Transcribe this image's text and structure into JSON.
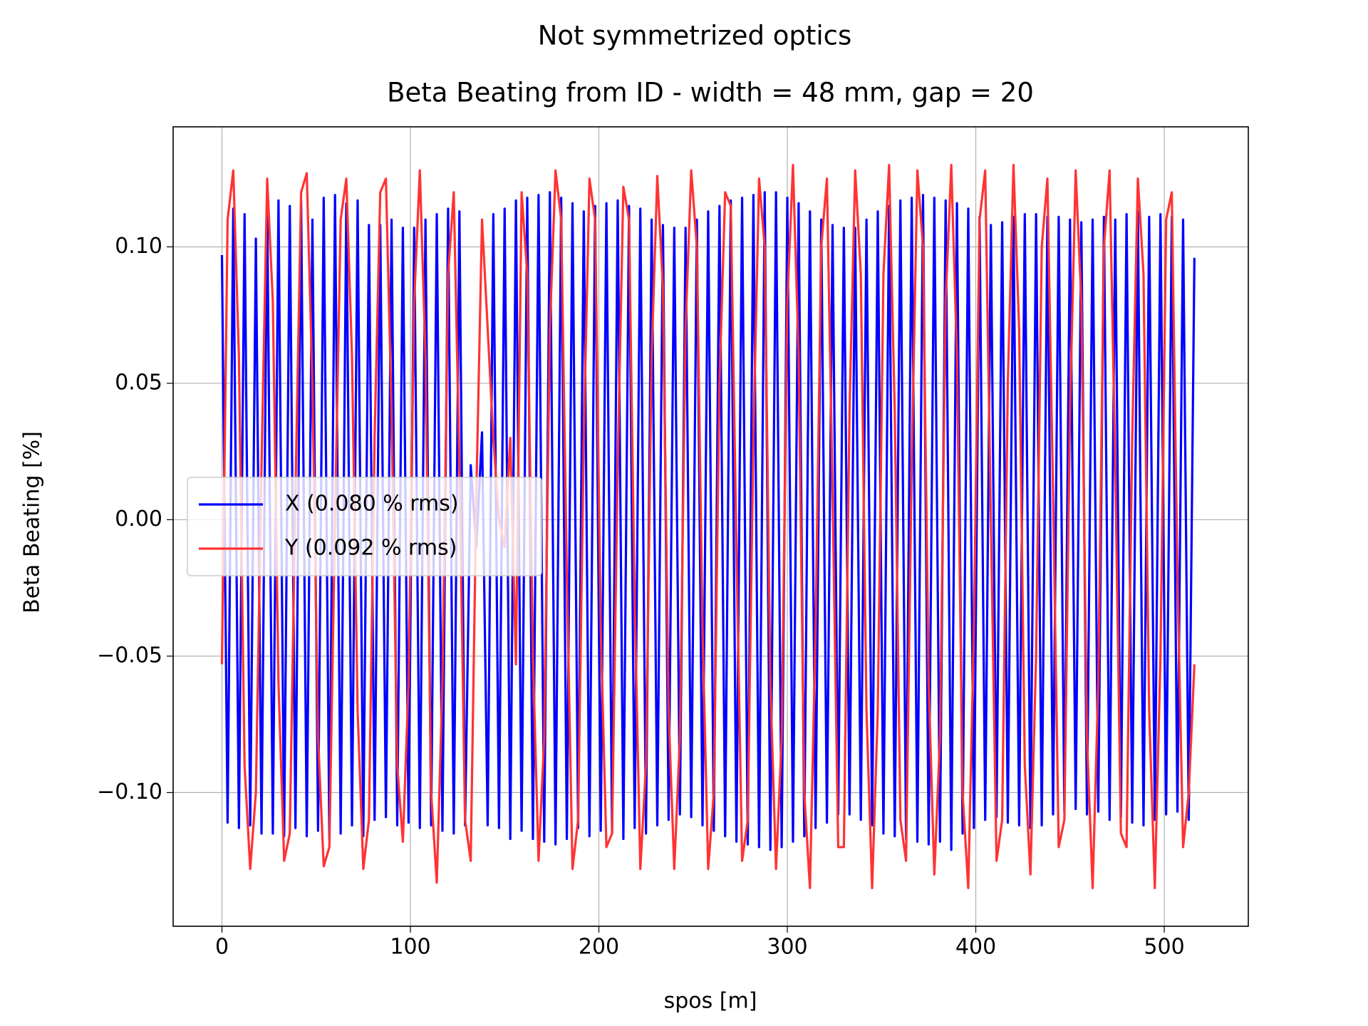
{
  "chart_data": {
    "type": "line",
    "suptitle": "Not symmetrized optics",
    "title": "Beta Beating from ID - width = 48 mm, gap = 20",
    "xlabel": "spos [m]",
    "ylabel": "Beta Beating [%]",
    "xlim": [
      -25.9,
      544.6
    ],
    "ylim": [
      -0.149,
      0.144
    ],
    "xticks": [
      0,
      100,
      200,
      300,
      400,
      500
    ],
    "yticks": [
      {
        "value": -0.1,
        "label": "−0.10"
      },
      {
        "value": -0.05,
        "label": "−0.05"
      },
      {
        "value": 0,
        "label": "0.00"
      },
      {
        "value": 0.05,
        "label": "0.05"
      },
      {
        "value": 0.1,
        "label": "0.10"
      }
    ],
    "grid": true,
    "legend": "center left",
    "x": [
      0,
      3,
      6,
      9,
      12,
      15,
      18,
      21,
      24,
      27,
      30,
      33,
      36,
      39,
      42,
      45,
      48,
      51,
      54,
      57,
      60,
      63,
      66,
      69,
      72,
      75,
      78,
      81,
      84,
      87,
      90,
      93,
      96,
      99,
      102,
      105,
      108,
      111,
      114,
      117,
      120,
      123,
      126,
      129,
      132,
      135,
      138,
      141,
      144,
      147,
      150,
      153,
      156,
      159,
      162,
      165,
      168,
      171,
      174,
      177,
      180,
      183,
      186,
      189,
      192,
      195,
      198,
      201,
      204,
      207,
      210,
      213,
      216,
      219,
      222,
      225,
      228,
      231,
      234,
      237,
      240,
      243,
      246,
      249,
      252,
      255,
      258,
      261,
      264,
      267,
      270,
      273,
      276,
      279,
      282,
      285,
      288,
      291,
      294,
      297,
      300,
      303,
      306,
      309,
      312,
      315,
      318,
      321,
      324,
      327,
      330,
      333,
      336,
      339,
      342,
      345,
      348,
      351,
      354,
      357,
      360,
      363,
      366,
      369,
      372,
      375,
      378,
      381,
      384,
      387,
      390,
      393,
      396,
      399,
      402,
      405,
      408,
      411,
      414,
      417,
      420,
      423,
      426,
      429,
      432,
      435,
      438,
      441,
      444,
      447,
      450,
      453,
      456,
      459,
      462,
      465,
      468,
      471,
      474,
      477,
      480,
      483,
      486,
      489,
      492,
      495,
      498,
      501,
      504,
      507,
      510,
      513,
      516
    ],
    "series": [
      {
        "name": "X (0.080 % rms)",
        "color": "#0000ff",
        "values": [
          0.097,
          -0.111,
          0.114,
          -0.113,
          0.112,
          -0.112,
          0.103,
          -0.115,
          0.116,
          -0.115,
          0.117,
          -0.116,
          0.115,
          -0.113,
          0.117,
          -0.116,
          0.11,
          -0.114,
          0.118,
          -0.117,
          0.119,
          -0.115,
          0.116,
          -0.112,
          0.117,
          -0.116,
          0.108,
          -0.11,
          0.108,
          -0.109,
          0.11,
          -0.112,
          0.107,
          -0.111,
          0.107,
          -0.113,
          0.11,
          -0.112,
          0.112,
          -0.114,
          0.114,
          -0.115,
          0.113,
          -0.112,
          0.02,
          -0.01,
          0.032,
          -0.112,
          0.112,
          -0.113,
          0.114,
          -0.117,
          0.117,
          -0.114,
          0.118,
          -0.117,
          0.119,
          -0.118,
          0.12,
          -0.119,
          0.118,
          -0.117,
          0.116,
          -0.113,
          0.113,
          -0.116,
          0.115,
          -0.114,
          0.116,
          -0.115,
          0.117,
          -0.117,
          0.115,
          -0.113,
          0.114,
          -0.115,
          0.11,
          -0.112,
          0.108,
          -0.11,
          0.107,
          -0.108,
          0.107,
          -0.109,
          0.11,
          -0.112,
          0.113,
          -0.114,
          0.115,
          -0.116,
          0.117,
          -0.118,
          0.118,
          -0.119,
          0.119,
          -0.12,
          0.12,
          -0.121,
          0.12,
          -0.12,
          0.118,
          -0.118,
          0.116,
          -0.116,
          0.113,
          -0.113,
          0.11,
          -0.111,
          0.108,
          -0.108,
          0.107,
          -0.108,
          0.107,
          -0.11,
          0.11,
          -0.112,
          0.113,
          -0.115,
          0.115,
          -0.116,
          0.117,
          -0.117,
          0.118,
          -0.118,
          0.119,
          -0.119,
          0.118,
          -0.118,
          0.117,
          -0.121,
          0.116,
          -0.115,
          0.114,
          -0.113,
          0.111,
          -0.11,
          0.108,
          -0.109,
          0.109,
          -0.111,
          0.111,
          -0.112,
          0.112,
          -0.113,
          0.112,
          -0.112,
          0.111,
          -0.108,
          0.111,
          -0.107,
          0.11,
          -0.106,
          0.109,
          -0.108,
          0.11,
          -0.107,
          0.111,
          -0.11,
          0.11,
          -0.109,
          0.112,
          -0.111,
          0.113,
          -0.112,
          0.111,
          -0.11,
          0.112,
          -0.108,
          0.111,
          -0.107,
          0.11,
          -0.11,
          0.096
        ]
      },
      {
        "name": "Y (0.092 % rms)",
        "color": "#ff3333",
        "values": [
          -0.053,
          0.11,
          0.128,
          0.06,
          -0.09,
          -0.128,
          -0.1,
          0.02,
          0.125,
          0.08,
          -0.06,
          -0.125,
          -0.115,
          0.01,
          0.12,
          0.127,
          0.05,
          -0.08,
          -0.127,
          -0.12,
          0.0,
          0.11,
          0.125,
          0.06,
          -0.07,
          -0.128,
          -0.11,
          0.03,
          0.12,
          0.125,
          0.04,
          -0.09,
          -0.118,
          -0.06,
          0.08,
          0.128,
          0.06,
          -0.1,
          -0.133,
          -0.06,
          0.09,
          0.12,
          0.02,
          -0.11,
          -0.125,
          0.01,
          0.11,
          0.07,
          0.03,
          0.0,
          -0.01,
          0.03,
          -0.053,
          0.12,
          0.09,
          -0.05,
          -0.125,
          -0.08,
          0.07,
          0.128,
          0.11,
          -0.02,
          -0.128,
          -0.11,
          0.03,
          0.125,
          0.11,
          -0.04,
          -0.12,
          -0.115,
          0.02,
          0.122,
          0.11,
          -0.03,
          -0.128,
          -0.09,
          0.06,
          0.126,
          0.085,
          -0.07,
          -0.128,
          -0.08,
          0.07,
          0.128,
          0.1,
          -0.04,
          -0.128,
          -0.1,
          0.05,
          0.12,
          0.115,
          -0.01,
          -0.125,
          -0.11,
          0.03,
          0.125,
          0.1,
          -0.06,
          -0.128,
          -0.08,
          0.08,
          0.13,
          0.06,
          -0.1,
          -0.135,
          -0.04,
          0.1,
          0.125,
          0.01,
          -0.12,
          -0.12,
          0.04,
          0.128,
          0.09,
          -0.07,
          -0.135,
          -0.07,
          0.09,
          0.13,
          0.04,
          -0.11,
          -0.125,
          0.02,
          0.128,
          0.1,
          -0.06,
          -0.13,
          -0.08,
          0.08,
          0.13,
          0.06,
          -0.1,
          -0.135,
          -0.04,
          0.11,
          0.128,
          0.0,
          -0.125,
          -0.11,
          0.05,
          0.13,
          0.07,
          -0.09,
          -0.13,
          -0.05,
          0.1,
          0.125,
          0.01,
          -0.12,
          -0.11,
          0.04,
          0.128,
          0.08,
          -0.08,
          -0.135,
          -0.06,
          0.1,
          0.128,
          0.02,
          -0.115,
          -0.12,
          0.03,
          0.125,
          0.09,
          -0.07,
          -0.135,
          -0.05,
          0.11,
          0.12,
          -0.02,
          -0.12,
          -0.1,
          -0.053
        ]
      }
    ]
  }
}
